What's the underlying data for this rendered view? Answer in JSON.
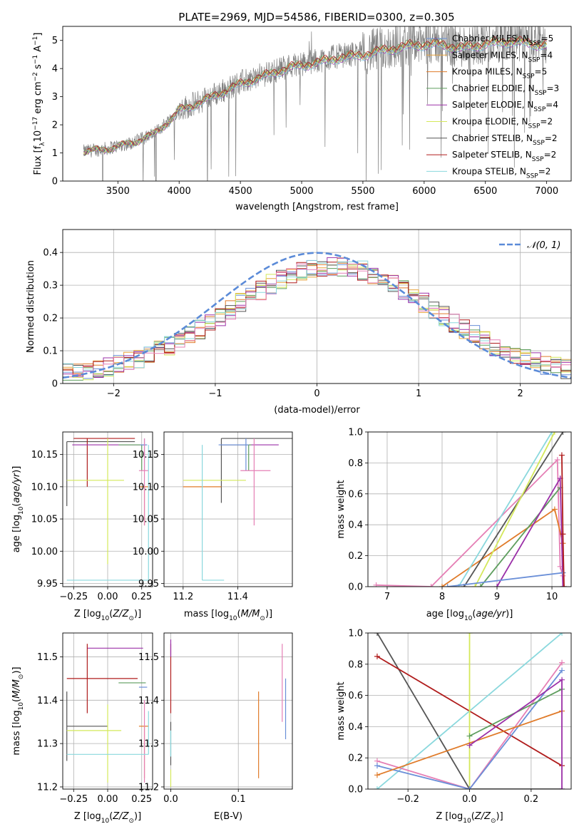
{
  "figure_title": "PLATE=2969, MJD=54586, FIBERID=0300, z=0.305",
  "colors": {
    "spectrum": "#808080",
    "chabrier_miles": "#6a8fd8",
    "salpeter_miles": "#e8a33c",
    "kroupa_miles": "#e07b2a",
    "chabrier_elodie": "#5e9e5e",
    "salpeter_elodie": "#9b30a8",
    "kroupa_elodie": "#d4e85a",
    "chabrier_stelib": "#555555",
    "salpeter_stelib": "#b01c1c",
    "kroupa_stelib": "#8ad8dd",
    "pink": "#e57fb5",
    "gaussian": "#5b8bd8",
    "grid": "#b0b0b0"
  },
  "legend_models": [
    {
      "key": "chabrier_miles",
      "label": "Chabrier MILES, N",
      "sub": "SSP",
      "n": "=5",
      "color": "#6a8fd8"
    },
    {
      "key": "salpeter_miles",
      "label": "Salpeter MILES, N",
      "sub": "SSP",
      "n": "=4",
      "color": "#e8a33c"
    },
    {
      "key": "kroupa_miles",
      "label": "Kroupa MILES, N",
      "sub": "SSP",
      "n": "=5",
      "color": "#e07b2a"
    },
    {
      "key": "chabrier_elodie",
      "label": "Chabrier ELODIE, N",
      "sub": "SSP",
      "n": "=3",
      "color": "#5e9e5e"
    },
    {
      "key": "salpeter_elodie",
      "label": "Salpeter ELODIE, N",
      "sub": "SSP",
      "n": "=4",
      "color": "#9b30a8"
    },
    {
      "key": "kroupa_elodie",
      "label": "Kroupa ELODIE, N",
      "sub": "SSP",
      "n": "=2",
      "color": "#d4e85a"
    },
    {
      "key": "chabrier_stelib",
      "label": "Chabrier STELIB, N",
      "sub": "SSP",
      "n": "=2",
      "color": "#555555"
    },
    {
      "key": "salpeter_stelib",
      "label": "Salpeter STELIB, N",
      "sub": "SSP",
      "n": "=2",
      "color": "#b01c1c"
    },
    {
      "key": "kroupa_stelib",
      "label": "Kroupa STELIB, N",
      "sub": "SSP",
      "n": "=2",
      "color": "#8ad8dd"
    }
  ],
  "chart_data": [
    {
      "id": "spectrum",
      "type": "line",
      "title": "PLATE=2969, MJD=54586, FIBERID=0300, z=0.305",
      "xlabel": "wavelength [Angstrom, rest frame]",
      "ylabel": "Flux [f",
      "xlim": [
        3050,
        7200
      ],
      "ylim": [
        0,
        5.5
      ],
      "xticks": [
        3500,
        4000,
        4500,
        5000,
        5500,
        6000,
        6500,
        7000
      ],
      "yticks": [
        0,
        1,
        2,
        3,
        4,
        5
      ],
      "grid": false,
      "legend": "upper-right",
      "model_trend": [
        [
          3220,
          1.05
        ],
        [
          3400,
          1.15
        ],
        [
          3600,
          1.35
        ],
        [
          3800,
          1.7
        ],
        [
          3950,
          2.3
        ],
        [
          4000,
          2.55
        ],
        [
          4100,
          2.7
        ],
        [
          4300,
          3.1
        ],
        [
          4500,
          3.5
        ],
        [
          4700,
          3.8
        ],
        [
          4900,
          4.1
        ],
        [
          5100,
          4.25
        ],
        [
          5300,
          4.45
        ],
        [
          5500,
          4.55
        ],
        [
          5700,
          4.75
        ],
        [
          5900,
          4.9
        ],
        [
          6100,
          4.95
        ],
        [
          6300,
          4.8
        ],
        [
          6500,
          4.95
        ],
        [
          6700,
          5.05
        ],
        [
          6900,
          4.95
        ],
        [
          7000,
          4.9
        ]
      ]
    },
    {
      "id": "residuals",
      "type": "line",
      "xlabel": "(data-model)/error",
      "ylabel": "Normed distribution",
      "xlim": [
        -2.5,
        2.5
      ],
      "ylim": [
        0,
        0.47
      ],
      "xticks": [
        -2,
        -1,
        0,
        1,
        2
      ],
      "yticks": [
        0.0,
        0.1,
        0.2,
        0.3,
        0.4
      ],
      "grid": true,
      "legend": "upper-right",
      "series": [
        {
          "name": "𝒩(0, 1)",
          "type": "gaussian",
          "mu": 0,
          "sigma": 1
        }
      ]
    },
    {
      "id": "age_vs_Z",
      "type": "scatter",
      "xlabel": "Z [log",
      "ylabel": "age  [log",
      "xlim": [
        -0.33,
        0.33
      ],
      "ylim": [
        9.945,
        10.185
      ],
      "xticks": [
        -0.25,
        0.0,
        0.25
      ],
      "xtick_labels": [
        "−0.25",
        "0.00",
        "0.25"
      ],
      "yticks": [
        9.95,
        10.0,
        10.05,
        10.1,
        10.15
      ],
      "ytick_labels": [
        "9.95",
        "10.00",
        "10.05",
        "10.10",
        "10.15"
      ],
      "grid": true,
      "points": [
        {
          "model": "chabrier_stelib",
          "x": -0.3,
          "y": 10.17,
          "xerr": [
            0,
            0.5
          ],
          "yerr": [
            0.1,
            0
          ]
        },
        {
          "model": "salpeter_stelib",
          "x": -0.15,
          "y": 10.175,
          "xerr": [
            0.1,
            0.35
          ],
          "yerr": [
            0.075,
            0
          ]
        },
        {
          "model": "salpeter_elodie",
          "x": -0.03,
          "y": 10.165,
          "xerr": [
            0.23,
            0.3
          ],
          "yerr": [
            0.0,
            0.0
          ]
        },
        {
          "model": "kroupa_elodie",
          "x": 0.0,
          "y": 10.11,
          "xerr": [
            0.3,
            0.12
          ],
          "yerr": [
            0.13,
            0.065
          ]
        },
        {
          "model": "chabrier_elodie",
          "x": 0.25,
          "y": 10.165,
          "xerr": [
            0.17,
            0.03
          ],
          "yerr": [
            0.04,
            0
          ]
        },
        {
          "model": "chabrier_miles",
          "x": 0.27,
          "y": 10.165,
          "xerr": [
            0.03,
            0.02
          ],
          "yerr": [
            0.04,
            0.01
          ]
        },
        {
          "model": "kroupa_miles",
          "x": 0.27,
          "y": 10.1,
          "xerr": [
            0.04,
            0.03
          ],
          "yerr": [
            0.06,
            0
          ]
        },
        {
          "model": "pink",
          "x": 0.27,
          "y": 10.125,
          "xerr": [
            0.04,
            0.03
          ],
          "yerr": [
            0.085,
            0.05
          ]
        },
        {
          "model": "kroupa_stelib",
          "x": 0.3,
          "y": 9.955,
          "xerr": [
            0.6,
            0
          ],
          "yerr": [
            0,
            0.21
          ]
        }
      ]
    },
    {
      "id": "age_vs_mass",
      "type": "scatter",
      "xlabel": "mass [log",
      "xlim": [
        11.13,
        11.6
      ],
      "ylim": [
        9.945,
        10.185
      ],
      "xticks": [
        11.2,
        11.4
      ],
      "xtick_labels": [
        "11.2",
        "11.4"
      ],
      "yticks": [
        9.95,
        10.0,
        10.05,
        10.1,
        10.15
      ],
      "ytick_labels": [
        "9.95",
        "10.00",
        "10.05",
        "10.10",
        "10.15"
      ],
      "grid": true,
      "points": [
        {
          "model": "chabrier_stelib",
          "x": 11.34,
          "y": 10.175,
          "xerr": [
            0,
            0.26
          ],
          "yerr": [
            0.1,
            0
          ]
        },
        {
          "model": "salpeter_elodie",
          "x": 11.52,
          "y": 10.165,
          "xerr": [
            0.18,
            0.03
          ],
          "yerr": [
            0.0,
            0.0
          ]
        },
        {
          "model": "chabrier_elodie",
          "x": 11.44,
          "y": 10.165,
          "xerr": [
            0.1,
            0.01
          ],
          "yerr": [
            0.04,
            0
          ]
        },
        {
          "model": "chabrier_miles",
          "x": 11.43,
          "y": 10.165,
          "xerr": [
            0.1,
            0.01
          ],
          "yerr": [
            0.04,
            0.01
          ]
        },
        {
          "model": "kroupa_elodie",
          "x": 11.33,
          "y": 10.11,
          "xerr": [
            0.13,
            0.1
          ],
          "yerr": [
            0.0,
            0.0
          ]
        },
        {
          "model": "kroupa_miles",
          "x": 11.34,
          "y": 10.1,
          "xerr": [
            0.14,
            0
          ],
          "yerr": [
            0,
            0.0
          ]
        },
        {
          "model": "pink",
          "x": 11.46,
          "y": 10.125,
          "xerr": [
            0.05,
            0.06
          ],
          "yerr": [
            0.085,
            0.05
          ]
        },
        {
          "model": "kroupa_stelib",
          "x": 11.27,
          "y": 9.955,
          "xerr": [
            0,
            0.08
          ],
          "yerr": [
            0,
            0.21
          ]
        }
      ]
    },
    {
      "id": "weight_vs_age",
      "type": "line",
      "xlabel": "age  [log",
      "ylabel": "mass weight",
      "xlim": [
        6.65,
        10.35
      ],
      "ylim": [
        0,
        1.0
      ],
      "xticks": [
        7,
        8,
        9,
        10
      ],
      "yticks": [
        0.0,
        0.2,
        0.4,
        0.6,
        0.8,
        1.0
      ],
      "ytick_labels": [
        "0.0",
        "0.2",
        "0.4",
        "0.6",
        "0.8",
        "1.0"
      ],
      "grid": true,
      "series": [
        {
          "model": "pink",
          "x": [
            6.8,
            7.8,
            10.1,
            10.15,
            10.2
          ],
          "y": [
            0.01,
            0.0,
            0.82,
            0.13,
            0.07
          ]
        },
        {
          "model": "kroupa_miles",
          "x": [
            8.0,
            10.05,
            10.2,
            10.2
          ],
          "y": [
            0.0,
            0.5,
            0.28,
            0.09
          ]
        },
        {
          "model": "kroupa_stelib",
          "x": [
            8.3,
            10.0
          ],
          "y": [
            0.0,
            1.0
          ]
        },
        {
          "model": "chabrier_stelib",
          "x": [
            8.4,
            10.2
          ],
          "y": [
            0.0,
            1.0
          ]
        },
        {
          "model": "kroupa_elodie",
          "x": [
            8.6,
            10.05
          ],
          "y": [
            0.0,
            1.0
          ]
        },
        {
          "model": "chabrier_elodie",
          "x": [
            8.7,
            10.15
          ],
          "y": [
            0.0,
            0.64
          ]
        },
        {
          "model": "salpeter_elodie",
          "x": [
            9.0,
            10.15,
            10.2
          ],
          "y": [
            0.0,
            0.7,
            0.0
          ]
        },
        {
          "model": "chabrier_miles",
          "x": [
            8.1,
            10.2
          ],
          "y": [
            0.0,
            0.09
          ]
        },
        {
          "model": "salpeter_stelib",
          "x": [
            10.18,
            10.2,
            10.22
          ],
          "y": [
            0.85,
            0.34,
            0.0
          ]
        }
      ]
    },
    {
      "id": "mass_vs_Z",
      "type": "scatter",
      "xlabel": "Z [log",
      "ylabel": "mass [log",
      "xlim": [
        -0.33,
        0.33
      ],
      "ylim": [
        11.195,
        11.555
      ],
      "xticks": [
        -0.25,
        0.0,
        0.25
      ],
      "xtick_labels": [
        "−0.25",
        "0.00",
        "0.25"
      ],
      "yticks": [
        11.2,
        11.3,
        11.4,
        11.5
      ],
      "ytick_labels": [
        "11.2",
        "11.3",
        "11.4",
        "11.5"
      ],
      "grid": true,
      "points": [
        {
          "model": "salpeter_elodie",
          "x": 0.23,
          "y": 11.52,
          "xerr": [
            0.38,
            0.03
          ],
          "yerr": [
            0,
            0
          ]
        },
        {
          "model": "salpeter_stelib",
          "x": -0.15,
          "y": 11.45,
          "xerr": [
            0.15,
            0.37
          ],
          "yerr": [
            0.08,
            0.08
          ]
        },
        {
          "model": "chabrier_elodie",
          "x": 0.25,
          "y": 11.44,
          "xerr": [
            0.17,
            0.03
          ],
          "yerr": [
            0,
            0
          ]
        },
        {
          "model": "chabrier_miles",
          "x": 0.27,
          "y": 11.43,
          "xerr": [
            0.04,
            0.02
          ],
          "yerr": [
            0,
            0
          ]
        },
        {
          "model": "chabrier_stelib",
          "x": -0.3,
          "y": 11.34,
          "xerr": [
            0,
            0.3
          ],
          "yerr": [
            0.08,
            0.08
          ]
        },
        {
          "model": "kroupa_elodie",
          "x": 0.0,
          "y": 11.33,
          "xerr": [
            0.3,
            0.1
          ],
          "yerr": [
            0.12,
            0.06
          ]
        },
        {
          "model": "kroupa_miles",
          "x": 0.27,
          "y": 11.34,
          "xerr": [
            0.04,
            0.03
          ],
          "yerr": [
            0.12,
            0
          ]
        },
        {
          "model": "pink",
          "x": 0.27,
          "y": 11.35,
          "xerr": [
            0,
            0
          ],
          "yerr": [
            0.14,
            0.05
          ]
        },
        {
          "model": "kroupa_stelib",
          "x": 0.3,
          "y": 11.275,
          "xerr": [
            0.6,
            0
          ],
          "yerr": [
            0,
            0.1
          ]
        }
      ]
    },
    {
      "id": "mass_vs_ebv",
      "type": "scatter",
      "xlabel": "E(B-V)",
      "xlim": [
        -0.01,
        0.18
      ],
      "ylim": [
        11.195,
        11.555
      ],
      "xticks": [
        0.0,
        0.1
      ],
      "xtick_labels": [
        "0.0",
        "0.1"
      ],
      "yticks": [
        11.2,
        11.3,
        11.4,
        11.5
      ],
      "ytick_labels": [
        "11.2",
        "11.3",
        "11.4",
        "11.5"
      ],
      "grid": true,
      "points": [
        {
          "model": "salpeter_stelib",
          "x": 0.0,
          "y": 11.45,
          "xerr": [
            0,
            0
          ],
          "yerr": [
            0.08,
            0.08
          ]
        },
        {
          "model": "salpeter_elodie",
          "x": 0.0,
          "y": 11.52,
          "xerr": [
            0,
            0
          ],
          "yerr": [
            0.02,
            0.02
          ]
        },
        {
          "model": "chabrier_stelib",
          "x": 0.0,
          "y": 11.3,
          "xerr": [
            0,
            0
          ],
          "yerr": [
            0.05,
            0.05
          ]
        },
        {
          "model": "kroupa_stelib",
          "x": 0.0,
          "y": 11.3,
          "xerr": [
            0,
            0
          ],
          "yerr": [
            0.03,
            0.03
          ]
        },
        {
          "model": "kroupa_elodie",
          "x": 0.0,
          "y": 11.22,
          "xerr": [
            0,
            0
          ],
          "yerr": [
            0.02,
            0.02
          ]
        },
        {
          "model": "kroupa_miles",
          "x": 0.13,
          "y": 11.32,
          "xerr": [
            0,
            0
          ],
          "yerr": [
            0.1,
            0.1
          ]
        },
        {
          "model": "pink",
          "x": 0.165,
          "y": 11.44,
          "xerr": [
            0,
            0
          ],
          "yerr": [
            0.09,
            0.09
          ]
        },
        {
          "model": "chabrier_miles",
          "x": 0.17,
          "y": 11.38,
          "xerr": [
            0,
            0
          ],
          "yerr": [
            0.07,
            0.07
          ]
        }
      ]
    },
    {
      "id": "weight_vs_Z",
      "type": "line",
      "xlabel": "Z [log",
      "ylabel": "mass weight",
      "xlim": [
        -0.33,
        0.33
      ],
      "ylim": [
        0,
        1.0
      ],
      "xticks": [
        -0.2,
        0.0,
        0.2
      ],
      "xtick_labels": [
        "−0.2",
        "0.0",
        "0.2"
      ],
      "yticks": [
        0.0,
        0.2,
        0.4,
        0.6,
        0.8,
        1.0
      ],
      "ytick_labels": [
        "0.0",
        "0.2",
        "0.4",
        "0.6",
        "0.8",
        "1.0"
      ],
      "grid": true,
      "series": [
        {
          "model": "chabrier_stelib",
          "x": [
            -0.3,
            0.0,
            0.3
          ],
          "y": [
            1.0,
            0.0,
            0.0
          ]
        },
        {
          "model": "salpeter_stelib",
          "x": [
            -0.3,
            0.3
          ],
          "y": [
            0.85,
            0.15
          ]
        },
        {
          "model": "kroupa_stelib",
          "x": [
            -0.3,
            0.3
          ],
          "y": [
            0.0,
            1.0
          ]
        },
        {
          "model": "kroupa_elodie",
          "x": [
            0.0,
            0.0
          ],
          "y": [
            0.0,
            1.0
          ]
        },
        {
          "model": "pink",
          "x": [
            -0.3,
            0.0,
            0.3
          ],
          "y": [
            0.18,
            0.0,
            0.81
          ]
        },
        {
          "model": "chabrier_miles",
          "x": [
            -0.3,
            0.0,
            0.3
          ],
          "y": [
            0.15,
            0.0,
            0.76
          ]
        },
        {
          "model": "kroupa_miles",
          "x": [
            -0.3,
            0.3
          ],
          "y": [
            0.09,
            0.5
          ]
        },
        {
          "model": "chabrier_elodie",
          "x": [
            0.0,
            0.3
          ],
          "y": [
            0.34,
            0.64
          ]
        },
        {
          "model": "salpeter_elodie",
          "x": [
            0.0,
            0.3,
            0.3
          ],
          "y": [
            0.28,
            0.7,
            0.0
          ]
        }
      ]
    }
  ],
  "labels": {
    "sol": "⊙",
    "age_unit": "age/yr",
    "mass_unit": "M/M",
    "z_unit": "Z/Z",
    "flux_tail": "10",
    "flux_exp": "−17",
    "flux_units": " erg cm",
    "flux_e2": "−2",
    "flux_s": " s",
    "flux_e1": "−1",
    "flux_A": " A",
    "flux_e1b": "−1",
    "flux_close": "]",
    "lambda_sub": "λ"
  }
}
